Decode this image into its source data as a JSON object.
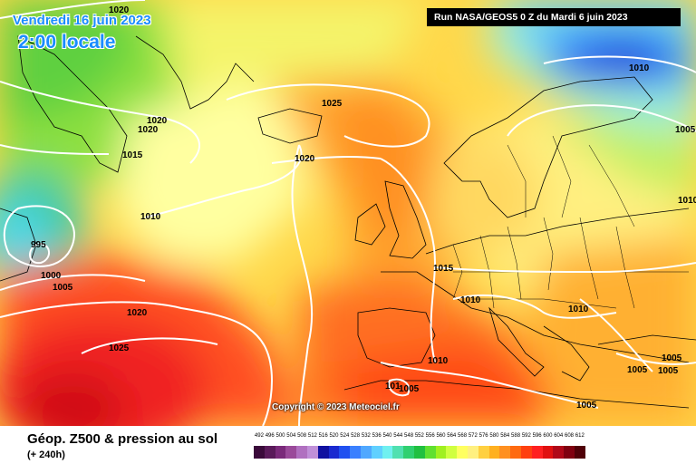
{
  "map": {
    "date_label": "Vendredi 16 juin 2023",
    "time_label": "2:00 locale",
    "run_label": "Run NASA/GEOS5 0 Z du Mardi 6 juin 2023",
    "copyright": "Copyright © 2023 Meteociel.fr",
    "pressure_labels": [
      {
        "text": "1020"
      },
      {
        "text": "1020"
      },
      {
        "text": "1020"
      },
      {
        "text": "1015"
      },
      {
        "text": "1010"
      },
      {
        "text": "995"
      },
      {
        "text": "1000"
      },
      {
        "text": "1005"
      },
      {
        "text": "1020"
      },
      {
        "text": "1025"
      },
      {
        "text": "1025"
      },
      {
        "text": "1020"
      },
      {
        "text": "1015"
      },
      {
        "text": "1010"
      },
      {
        "text": "1010"
      },
      {
        "text": "1010"
      },
      {
        "text": "1005"
      },
      {
        "text": "1005"
      },
      {
        "text": "1005"
      },
      {
        "text": "1005"
      },
      {
        "text": "1010"
      },
      {
        "text": "1005"
      },
      {
        "text": "1010"
      },
      {
        "text": "1005"
      },
      {
        "text": "101"
      }
    ]
  },
  "footer": {
    "title": "Géop. Z500 & pression au sol",
    "subtitle": "(+ 240h)"
  },
  "legend": {
    "values": [
      "492",
      "496",
      "500",
      "504",
      "508",
      "512",
      "516",
      "520",
      "524",
      "528",
      "532",
      "536",
      "540",
      "544",
      "548",
      "552",
      "556",
      "560",
      "564",
      "568",
      "572",
      "576",
      "580",
      "584",
      "588",
      "592",
      "596",
      "600",
      "604",
      "608",
      "612"
    ],
    "colors": [
      "#3a0a3a",
      "#5a1a5a",
      "#7a2a7a",
      "#9a4a9a",
      "#b070c0",
      "#c090d8",
      "#1010a0",
      "#1a2ad0",
      "#2050f0",
      "#3a80ff",
      "#50a8ff",
      "#60d0ff",
      "#70f0f0",
      "#50e0b0",
      "#30d070",
      "#20c040",
      "#60e030",
      "#a0f020",
      "#d0ff40",
      "#ffff60",
      "#fff080",
      "#ffd040",
      "#ffb020",
      "#ff9020",
      "#ff6a10",
      "#ff4010",
      "#ff2020",
      "#e01010",
      "#b00818",
      "#800010",
      "#500008"
    ]
  }
}
